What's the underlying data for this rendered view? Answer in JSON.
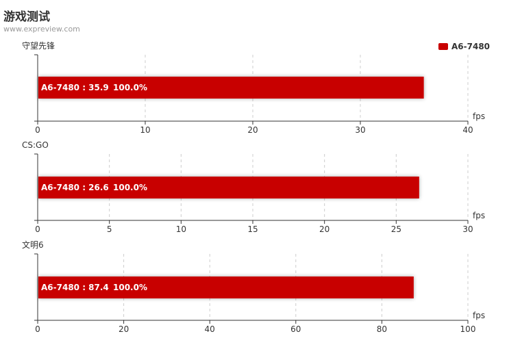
{
  "header": {
    "title": "游戏测试",
    "subtitle": "www.expreview.com"
  },
  "legend": {
    "label": "A6-7480",
    "color": "#c80000"
  },
  "chart_data": [
    {
      "type": "bar",
      "orientation": "horizontal",
      "title": "守望先锋",
      "xlabel": "fps",
      "xlim": [
        0,
        40
      ],
      "xticks": [
        0,
        10,
        20,
        30,
        40
      ],
      "grid": true,
      "legend_position": "top-right",
      "series": [
        {
          "name": "A6-7480",
          "values": [
            35.9
          ],
          "color": "#c80000"
        }
      ],
      "labels": [
        {
          "text": "A6-7480 : 35.9",
          "percent": "100.0%"
        }
      ]
    },
    {
      "type": "bar",
      "orientation": "horizontal",
      "title": "CS:GO",
      "xlabel": "fps",
      "xlim": [
        0,
        30
      ],
      "xticks": [
        0,
        5,
        10,
        15,
        20,
        25,
        30
      ],
      "grid": true,
      "series": [
        {
          "name": "A6-7480",
          "values": [
            26.6
          ],
          "color": "#c80000"
        }
      ],
      "labels": [
        {
          "text": "A6-7480 : 26.6",
          "percent": "100.0%"
        }
      ]
    },
    {
      "type": "bar",
      "orientation": "horizontal",
      "title": "文明6",
      "xlabel": "fps",
      "xlim": [
        0,
        100
      ],
      "xticks": [
        0,
        20,
        40,
        60,
        80,
        100
      ],
      "grid": true,
      "series": [
        {
          "name": "A6-7480",
          "values": [
            87.4
          ],
          "color": "#c80000"
        }
      ],
      "labels": [
        {
          "text": "A6-7480 : 87.4",
          "percent": "100.0%"
        }
      ]
    }
  ]
}
